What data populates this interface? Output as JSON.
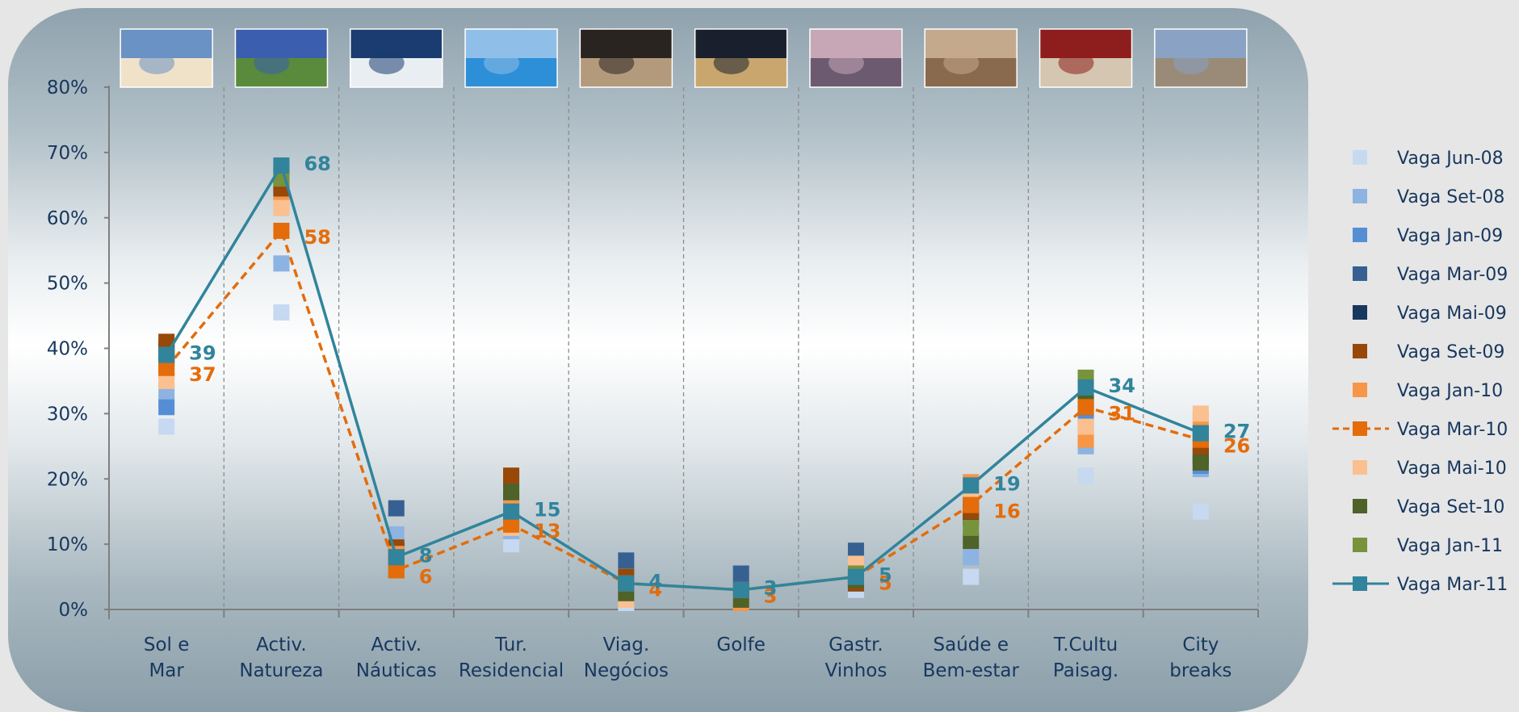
{
  "chart_data": {
    "type": "line",
    "categories": [
      [
        "Sol e",
        "Mar"
      ],
      [
        "Activ.",
        "Natureza"
      ],
      [
        "Activ.",
        "Náuticas"
      ],
      [
        "Tur.",
        "Residencial"
      ],
      [
        "Viag.",
        "Negócios"
      ],
      [
        "Golfe"
      ],
      [
        "Gastr.",
        "Vinhos"
      ],
      [
        "Saúde e",
        "Bem-estar"
      ],
      [
        "T.Cultu",
        "Paisag."
      ],
      [
        "City",
        "breaks"
      ]
    ],
    "ylim": [
      0,
      80
    ],
    "yticks": [
      "0%",
      "10%",
      "20%",
      "30%",
      "40%",
      "50%",
      "60%",
      "70%",
      "80%"
    ],
    "grid": "vertical dashed",
    "legend_position": "right",
    "series": [
      {
        "name": "Vaga Jun-08",
        "style": "marker",
        "color": "#c6d9f1",
        "values": [
          28,
          45.5,
          10,
          10,
          1,
          1.5,
          3,
          5,
          20.5,
          15
        ]
      },
      {
        "name": "Vaga Set-08",
        "style": "marker",
        "color": "#8db3e2",
        "values": [
          33.5,
          53,
          11.5,
          12,
          2,
          2,
          4,
          8,
          25,
          21.5
        ]
      },
      {
        "name": "Vaga Jan-09",
        "style": "marker",
        "color": "#558ed5",
        "values": [
          31,
          64,
          9,
          14,
          2.5,
          2.5,
          5,
          15,
          30,
          22
        ]
      },
      {
        "name": "Vaga Mar-09",
        "style": "marker",
        "color": "#376092",
        "values": [
          40,
          67.5,
          15.5,
          20,
          7.5,
          5.5,
          9,
          17,
          31,
          27
        ]
      },
      {
        "name": "Vaga Mai-09",
        "style": "marker",
        "color": "#17375e",
        "values": [
          39.5,
          65,
          9,
          17,
          3,
          3,
          4,
          14,
          32,
          23.5
        ]
      },
      {
        "name": "Vaga Set-09",
        "style": "marker",
        "color": "#984807",
        "values": [
          41,
          64.5,
          9.5,
          20.5,
          5,
          2,
          4,
          15,
          28,
          24.5
        ]
      },
      {
        "name": "Vaga Jan-10",
        "style": "marker",
        "color": "#f79646",
        "values": [
          36.5,
          62,
          8.5,
          15.5,
          2,
          1,
          6,
          19.5,
          26,
          29
        ]
      },
      {
        "name": "Vaga Mar-10",
        "style": "dashed-line",
        "color": "#e46c0a",
        "values": [
          37,
          58,
          6,
          13,
          4,
          3,
          5,
          16,
          31,
          26
        ],
        "labels": [
          "37",
          "58",
          "6",
          "13",
          "4",
          "3",
          "5",
          "16",
          "31",
          "26"
        ]
      },
      {
        "name": "Vaga Mai-10",
        "style": "marker",
        "color": "#fac090",
        "values": [
          35,
          61.5,
          8,
          12.5,
          1.5,
          2,
          7,
          18,
          28,
          30
        ]
      },
      {
        "name": "Vaga Set-10",
        "style": "marker",
        "color": "#4f6228",
        "values": [
          38.5,
          66.5,
          8,
          18,
          2.5,
          1.5,
          4.5,
          10.5,
          32,
          22.5
        ]
      },
      {
        "name": "Vaga Jan-11",
        "style": "marker",
        "color": "#77933c",
        "values": [
          39,
          66,
          6,
          13.5,
          4,
          3,
          5.5,
          12.5,
          35.5,
          27
        ]
      },
      {
        "name": "Vaga Mar-11",
        "style": "solid-line",
        "color": "#31849b",
        "values": [
          39,
          68,
          8,
          15,
          4,
          3,
          5,
          19,
          34,
          27
        ],
        "labels": [
          "39",
          "68",
          "8",
          "15",
          "4",
          "3",
          "5",
          "19",
          "34",
          "27"
        ]
      }
    ],
    "photos": [
      "beach-family-photo",
      "green-landscape-photo",
      "sailing-boat-photo",
      "house-pool-photo",
      "business-meeting-photo",
      "golf-players-photo",
      "chef-terrace-photo",
      "spa-massage-photo",
      "tourists-map-photo",
      "city-square-photo"
    ]
  }
}
